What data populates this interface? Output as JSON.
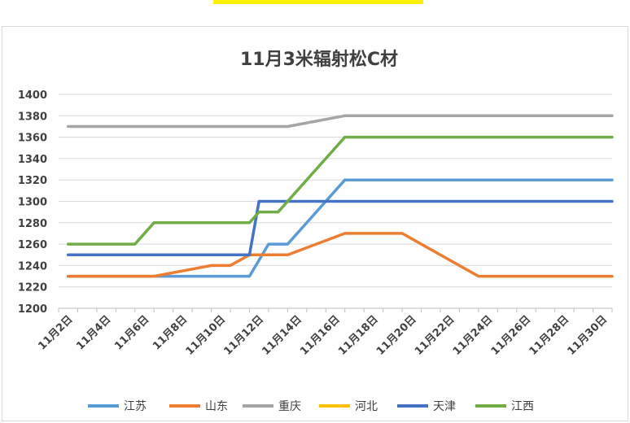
{
  "chart_data": {
    "type": "line",
    "title": "11月3米辐射松C材",
    "xlabel": "",
    "ylabel": "",
    "ylim": [
      1200,
      1400
    ],
    "yticks": [
      1200,
      1220,
      1240,
      1260,
      1280,
      1300,
      1320,
      1340,
      1360,
      1380,
      1400
    ],
    "xticks": [
      "11月2日",
      "11月4日",
      "11月6日",
      "11月8日",
      "11月10日",
      "11月12日",
      "11月14日",
      "11月16日",
      "11月18日",
      "11月20日",
      "11月22日",
      "11月24日",
      "11月26日",
      "11月28日",
      "11月30日"
    ],
    "grid": true,
    "legend_position": "bottom",
    "series": [
      {
        "name": "江苏",
        "color": "#5b9bd5",
        "points": [
          [
            2,
            1230
          ],
          [
            6.5,
            1230
          ],
          [
            11.5,
            1230
          ],
          [
            12.5,
            1260
          ],
          [
            13.5,
            1260
          ],
          [
            16.5,
            1320
          ],
          [
            30.5,
            1320
          ]
        ]
      },
      {
        "name": "山东",
        "color": "#ed7d31",
        "points": [
          [
            2,
            1230
          ],
          [
            6.5,
            1230
          ],
          [
            9.5,
            1240
          ],
          [
            10.5,
            1240
          ],
          [
            11.5,
            1250
          ],
          [
            13.5,
            1250
          ],
          [
            16.5,
            1270
          ],
          [
            19.5,
            1270
          ],
          [
            23.5,
            1230
          ],
          [
            30.5,
            1230
          ]
        ]
      },
      {
        "name": "重庆",
        "color": "#a5a5a5",
        "points": [
          [
            2,
            1370
          ],
          [
            13.5,
            1370
          ],
          [
            16.5,
            1380
          ],
          [
            30.5,
            1380
          ]
        ]
      },
      {
        "name": "河北",
        "color": "#ffc000",
        "points": []
      },
      {
        "name": "天津",
        "color": "#4472c4",
        "points": [
          [
            2,
            1250
          ],
          [
            11.5,
            1250
          ],
          [
            12,
            1300
          ],
          [
            30.5,
            1300
          ]
        ]
      },
      {
        "name": "江西",
        "color": "#70ad47",
        "points": [
          [
            2,
            1260
          ],
          [
            5.5,
            1260
          ],
          [
            6.5,
            1280
          ],
          [
            11.5,
            1280
          ],
          [
            12,
            1290
          ],
          [
            13,
            1290
          ],
          [
            16.5,
            1360
          ],
          [
            30.5,
            1360
          ]
        ]
      }
    ]
  }
}
